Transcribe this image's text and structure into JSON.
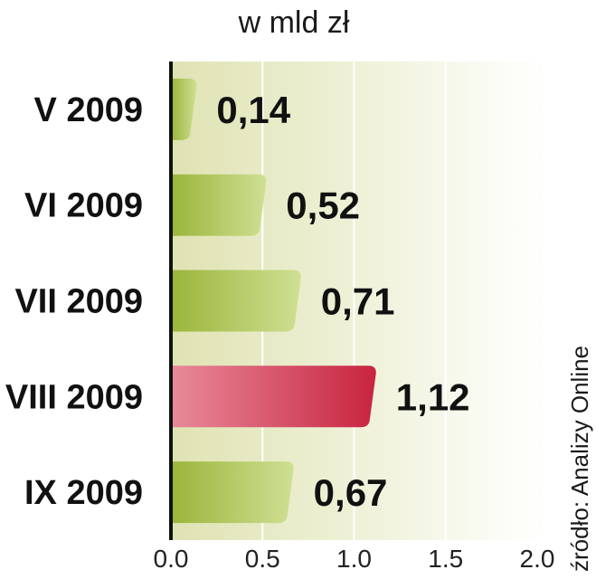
{
  "chart_data": {
    "type": "bar",
    "orientation": "horizontal",
    "subtitle": "w mld zł",
    "categories": [
      "V 2009",
      "VI 2009",
      "VII 2009",
      "VIII 2009",
      "IX 2009"
    ],
    "values": [
      0.14,
      0.52,
      0.71,
      1.12,
      0.67
    ],
    "value_labels": [
      "0,14",
      "0,52",
      "0,71",
      "1,12",
      "0,67"
    ],
    "highlight_index": 3,
    "xlim": [
      0,
      2
    ],
    "xticks": [
      0,
      0.5,
      1,
      1.5,
      2
    ],
    "xtick_labels": [
      "0.0",
      "0.5",
      "1.0",
      "1.5",
      "2.0"
    ],
    "grid": true,
    "source": "źródło: Analizy Online"
  },
  "colors": {
    "bar": "#9ab53a",
    "bar_light": "#cfdf94",
    "highlight": "#c8243f",
    "highlight_light": "#e88a9a",
    "highlight_text": "#c41f3c",
    "background_left": "#dfe3b2",
    "background_right": "#ffffff",
    "grid": "#ffffff",
    "axis": "#111111",
    "text": "#111111"
  }
}
